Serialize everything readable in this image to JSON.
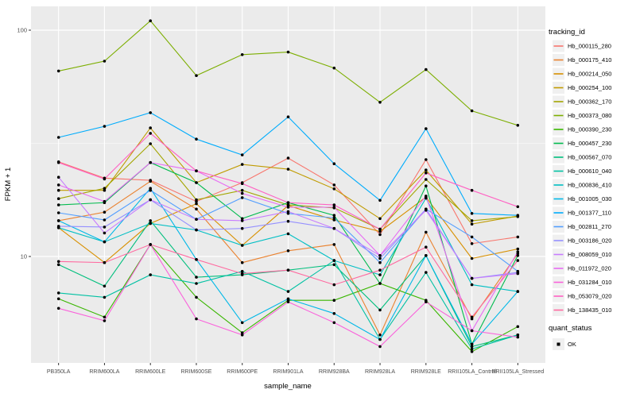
{
  "chart_data": {
    "type": "line",
    "title": "",
    "xlabel": "sample_name",
    "ylabel": "FPKM + 1",
    "y_scale": "log10",
    "y_ticks": [
      10,
      100
    ],
    "ylim": [
      3.4,
      127
    ],
    "grid": "on",
    "legend_position": "right",
    "legend": {
      "series_title": "tracking_id",
      "status_title": "quant_status",
      "status_value": "OK"
    },
    "categories": [
      "PB350LA",
      "RRIM600LA",
      "RRIM600LE",
      "RRIM600SE",
      "RRIM600PE",
      "RRIM901LA",
      "RRIM928BA",
      "RRIM928LA",
      "RRIM928LE",
      "RRII105LA_Control",
      "RRII105LA_Stressed"
    ],
    "series": [
      {
        "name": "Hb_000115_280",
        "color": "#F8766D",
        "values": [
          26.2,
          22.2,
          21.7,
          17.5,
          21.2,
          27.2,
          20.7,
          12.5,
          26.8,
          11.4,
          12.2
        ]
      },
      {
        "name": "Hb_000175_410",
        "color": "#EA8331",
        "values": [
          14.4,
          15.7,
          21.5,
          16.2,
          9.4,
          10.6,
          11.3,
          4.5,
          12.8,
          5.3,
          10.3
        ]
      },
      {
        "name": "Hb_000214_050",
        "color": "#D89000",
        "values": [
          13.4,
          9.4,
          14.0,
          17.1,
          11.2,
          16.8,
          14.5,
          12.9,
          18.3,
          9.8,
          10.8
        ]
      },
      {
        "name": "Hb_000254_100",
        "color": "#C09B00",
        "values": [
          19.6,
          19.6,
          37.0,
          21.2,
          25.5,
          24.3,
          19.9,
          14.7,
          24.1,
          13.9,
          15.1
        ]
      },
      {
        "name": "Hb_000362_170",
        "color": "#A3A500",
        "values": [
          18.0,
          20.0,
          31.5,
          17.8,
          19.6,
          16.9,
          16.4,
          13.2,
          21.9,
          14.4,
          15.0
        ]
      },
      {
        "name": "Hb_000373_080",
        "color": "#7CAE00",
        "values": [
          66.0,
          73.0,
          110.0,
          63.0,
          78.0,
          80.0,
          68.0,
          48.0,
          67.0,
          44.0,
          38.0
        ]
      },
      {
        "name": "Hb_000390_230",
        "color": "#39B600",
        "values": [
          6.5,
          5.4,
          11.3,
          6.6,
          4.6,
          6.4,
          6.4,
          7.6,
          6.4,
          3.8,
          4.9
        ]
      },
      {
        "name": "Hb_000457_230",
        "color": "#00BB4E",
        "values": [
          16.9,
          17.3,
          26.0,
          21.2,
          14.7,
          17.3,
          15.2,
          7.6,
          20.5,
          4.1,
          10.1
        ]
      },
      {
        "name": "Hb_000567_070",
        "color": "#00BF7D",
        "values": [
          9.2,
          7.4,
          14.4,
          8.1,
          8.3,
          8.7,
          9.2,
          5.8,
          10.1,
          4.0,
          4.5
        ]
      },
      {
        "name": "Hb_000610_040",
        "color": "#00C1A3",
        "values": [
          6.9,
          6.6,
          8.3,
          7.6,
          8.6,
          7.0,
          9.6,
          4.3,
          8.5,
          3.9,
          4.5
        ]
      },
      {
        "name": "Hb_000836_410",
        "color": "#00BFC4",
        "values": [
          13.4,
          11.6,
          14.0,
          13.1,
          11.2,
          12.6,
          9.6,
          8.3,
          18.1,
          7.5,
          7.0
        ]
      },
      {
        "name": "Hb_001005_030",
        "color": "#00B8E7",
        "values": [
          14.4,
          11.6,
          20.0,
          9.7,
          5.1,
          6.5,
          5.6,
          4.3,
          10.1,
          4.1,
          7.0
        ]
      },
      {
        "name": "Hb_001377_110",
        "color": "#00ACFC",
        "values": [
          33.6,
          37.6,
          43.2,
          33.0,
          28.1,
          41.4,
          25.7,
          17.7,
          36.7,
          15.5,
          15.2
        ]
      },
      {
        "name": "Hb_002811_270",
        "color": "#529EFF",
        "values": [
          15.6,
          14.5,
          19.6,
          14.6,
          18.2,
          15.5,
          14.8,
          9.4,
          16.2,
          12.2,
          8.6
        ]
      },
      {
        "name": "Hb_003186_020",
        "color": "#9590FF",
        "values": [
          13.6,
          13.5,
          17.8,
          13.1,
          13.3,
          14.3,
          13.3,
          9.8,
          16.2,
          8.0,
          8.5
        ]
      },
      {
        "name": "Hb_008059_010",
        "color": "#C77CFF",
        "values": [
          22.4,
          12.7,
          17.8,
          14.6,
          14.4,
          15.8,
          13.3,
          10.1,
          16.0,
          8.0,
          8.4
        ]
      },
      {
        "name": "Hb_011972_020",
        "color": "#E76BF3",
        "values": [
          20.7,
          17.5,
          26.0,
          23.9,
          19.0,
          16.5,
          16.5,
          10.1,
          18.5,
          4.7,
          10.5
        ]
      },
      {
        "name": "Hb_031284_010",
        "color": "#FA62DB",
        "values": [
          5.9,
          5.2,
          11.3,
          5.3,
          4.5,
          6.3,
          5.1,
          4.0,
          6.3,
          4.7,
          4.4
        ]
      },
      {
        "name": "Hb_053079_020",
        "color": "#FF61C3",
        "values": [
          26.0,
          22.0,
          35.0,
          23.9,
          21.0,
          17.3,
          16.9,
          13.2,
          23.4,
          19.6,
          16.6
        ]
      },
      {
        "name": "Hb_138435_010",
        "color": "#FF689F",
        "values": [
          9.5,
          9.4,
          11.3,
          9.7,
          8.4,
          8.7,
          7.5,
          8.7,
          11.0,
          5.4,
          9.6
        ]
      }
    ]
  },
  "style": {
    "panel_bg": "#EBEBEB",
    "grid_color": "#FFFFFF",
    "tick_color": "#333333",
    "tick_label_color": "#4D4D4D",
    "text_color": "#000000",
    "point_color": "#000000",
    "legend_key_bg": "#F0F0F0"
  }
}
